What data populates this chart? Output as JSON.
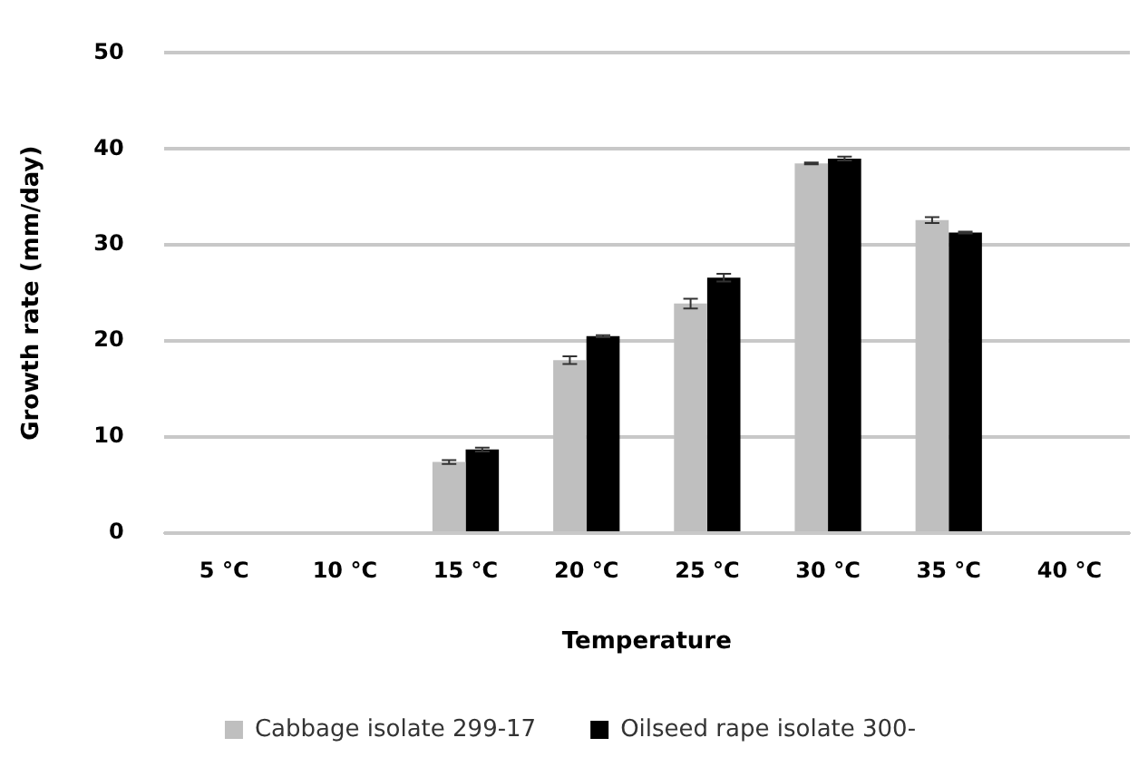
{
  "chart_data": {
    "type": "bar",
    "xlabel": "Temperature",
    "ylabel": "Growth rate (mm/day)",
    "categories": [
      "5 °C",
      "10 °C",
      "15 °C",
      "20 °C",
      "25 °C",
      "30 °C",
      "35 °C",
      "40 °C"
    ],
    "series": [
      {
        "name": "Cabbage isolate 299-17",
        "color": "#bfbfbf",
        "values": [
          0,
          0,
          7.4,
          18.0,
          23.9,
          38.5,
          32.6,
          0
        ],
        "errors": [
          null,
          null,
          0.2,
          0.4,
          0.5,
          0.1,
          0.3,
          null
        ]
      },
      {
        "name": "Oilseed rape isolate 300-",
        "color": "#000000",
        "values": [
          0,
          0,
          8.7,
          20.5,
          26.6,
          39.0,
          31.3,
          0
        ],
        "errors": [
          null,
          null,
          0.2,
          0.1,
          0.4,
          0.2,
          0.1,
          null
        ]
      }
    ],
    "ylim": [
      0,
      50
    ],
    "yticks": [
      0,
      10,
      20,
      30,
      40,
      50
    ],
    "grid": "y",
    "legend": "bottom"
  }
}
